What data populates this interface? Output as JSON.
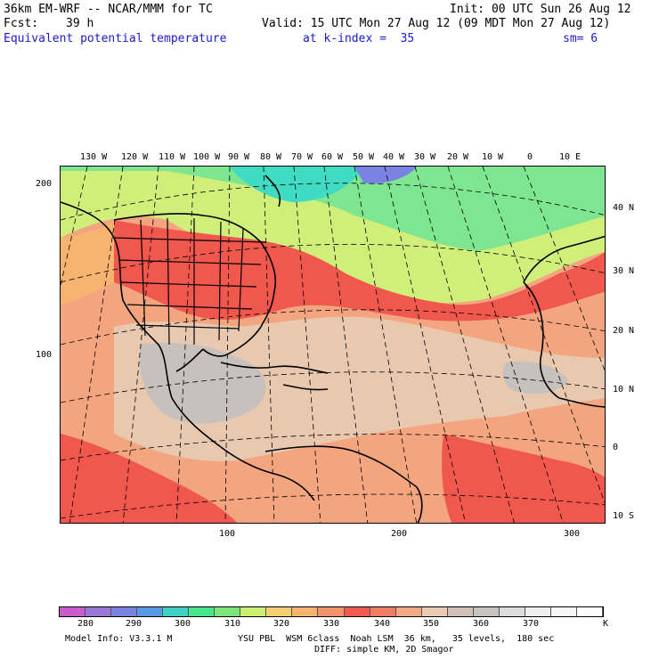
{
  "header": {
    "model": "36km EM-WRF -- NCAR/MMM for TC",
    "init": "Init: 00 UTC Sun 26 Aug 12",
    "fcst_label": "Fcst:",
    "fcst_value": "39 h",
    "valid": "Valid: 15 UTC Mon 27 Aug 12 (09 MDT Mon 27 Aug 12)",
    "field": "Equivalent potential temperature",
    "level": "at k-index =  35",
    "smooth": "sm= 6"
  },
  "map": {
    "top_lon_labels": [
      "130 W",
      "120 W",
      "110 W",
      "100 W",
      "90 W",
      "80 W",
      "70 W",
      "60 W",
      "50 W",
      "40 W",
      "30 W",
      "20 W",
      "10 W",
      "0",
      "10 E"
    ],
    "right_lat_labels": [
      "40 N",
      "30 N",
      "20 N",
      "10 N",
      "0",
      "10 S"
    ],
    "left_grid_labels": [
      "200",
      "100"
    ],
    "bottom_grid_labels": [
      "100",
      "200",
      "300"
    ],
    "colors": {
      "ocean_warm": "#f3a57f",
      "red_band": "#f0584e",
      "tan": "#e9c8b0",
      "gray": "#c7c0bc",
      "yellow_green": "#cfee7a",
      "green": "#7ee690",
      "teal": "#3fdcc3",
      "orange": "#f7b173",
      "land_line": "#000000"
    }
  },
  "colorbar": {
    "colors": [
      "#c85ccd",
      "#9a78d6",
      "#7a83e2",
      "#5799e5",
      "#3fd0c6",
      "#49e58c",
      "#7ce67a",
      "#cbf071",
      "#f6cf72",
      "#f6b470",
      "#f5946a",
      "#f15a4f",
      "#ef7d62",
      "#f3a983",
      "#ebcab3",
      "#d2c1b8",
      "#c7c3c0",
      "#dcdcdc",
      "#eeeeee",
      "#f7f7f7",
      "#ffffff"
    ],
    "labels": [
      "280",
      "290",
      "300",
      "310",
      "320",
      "330",
      "340",
      "350",
      "360",
      "370"
    ],
    "unit": "K"
  },
  "footer": {
    "model_info": "Model Info: V3.3.1 M",
    "physics": "YSU PBL  WSM 6class  Noah LSM  36 km,   35 levels,  180 sec",
    "diffusion": "DIFF: simple KM, 2D Smagor"
  }
}
